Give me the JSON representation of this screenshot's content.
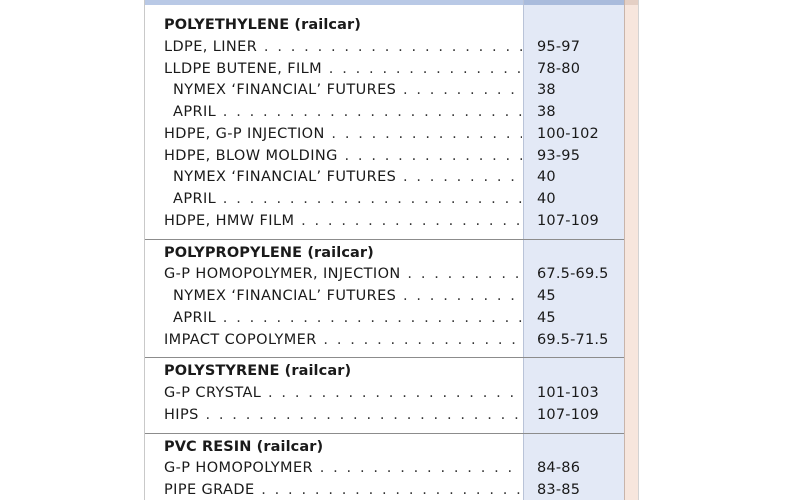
{
  "sections": [
    {
      "title": "POLYETHYLENE (railcar)",
      "rows": [
        {
          "name": "LDPE, LINER",
          "price": "95-97",
          "indent": false
        },
        {
          "name": "LLDPE BUTENE, FILM",
          "price": "78-80",
          "indent": false
        },
        {
          "name": "NYMEX ‘FINANCIAL’ FUTURES",
          "price": "38",
          "indent": true
        },
        {
          "name": "APRIL",
          "price": "38",
          "indent": true
        },
        {
          "name": "HDPE, G-P INJECTION",
          "price": "100-102",
          "indent": false
        },
        {
          "name": "HDPE, BLOW MOLDING",
          "price": "93-95",
          "indent": false
        },
        {
          "name": "NYMEX ‘FINANCIAL’ FUTURES",
          "price": "40",
          "indent": true
        },
        {
          "name": "APRIL",
          "price": "40",
          "indent": true
        },
        {
          "name": "HDPE, HMW FILM",
          "price": "107-109",
          "indent": false
        }
      ]
    },
    {
      "title": "POLYPROPYLENE (railcar)",
      "rows": [
        {
          "name": "G-P HOMOPOLYMER, INJECTION",
          "price": "67.5-69.5",
          "indent": false
        },
        {
          "name": "NYMEX ‘FINANCIAL’ FUTURES",
          "price": "45",
          "indent": true
        },
        {
          "name": "APRIL",
          "price": "45",
          "indent": true
        },
        {
          "name": "IMPACT COPOLYMER",
          "price": "69.5-71.5",
          "indent": false
        }
      ]
    },
    {
      "title": "POLYSTYRENE (railcar)",
      "rows": [
        {
          "name": "G-P CRYSTAL",
          "price": "101-103",
          "indent": false
        },
        {
          "name": "HIPS",
          "price": "107-109",
          "indent": false
        }
      ]
    },
    {
      "title": "PVC RESIN (railcar)",
      "rows": [
        {
          "name": "G-P HOMOPOLYMER",
          "price": "84-86",
          "indent": false
        },
        {
          "name": "PIPE GRADE",
          "price": "83-85",
          "indent": false
        }
      ]
    }
  ]
}
